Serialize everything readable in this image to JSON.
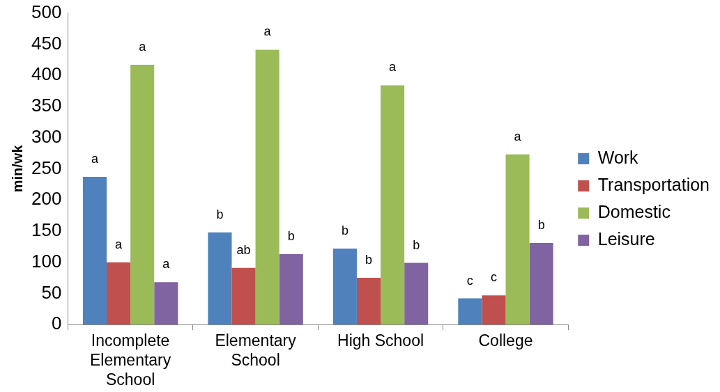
{
  "chart_data": {
    "type": "bar",
    "ylabel": "min/wk",
    "categories": [
      "Incomplete Elementary School",
      "Elementary School",
      "High School",
      "College"
    ],
    "series": [
      {
        "name": "Work",
        "color": "#4f81bd",
        "values": [
          237,
          148,
          122,
          42
        ],
        "value_labels": [
          "a",
          "b",
          "b",
          "c"
        ]
      },
      {
        "name": "Transportation",
        "color": "#c0504d",
        "values": [
          100,
          91,
          75,
          47
        ],
        "value_labels": [
          "a",
          "ab",
          "b",
          "c"
        ]
      },
      {
        "name": "Domestic",
        "color": "#9bbb59",
        "values": [
          417,
          441,
          384,
          273
        ],
        "value_labels": [
          "a",
          "a",
          "a",
          "a"
        ]
      },
      {
        "name": "Leisure",
        "color": "#8064a2",
        "values": [
          68,
          113,
          99,
          131
        ],
        "value_labels": [
          "a",
          "b",
          "b",
          "b"
        ]
      }
    ],
    "ylim": [
      0,
      500
    ],
    "yticks": [
      0,
      50,
      100,
      150,
      200,
      250,
      300,
      350,
      400,
      450,
      500
    ],
    "grid": false,
    "legend": "right"
  }
}
